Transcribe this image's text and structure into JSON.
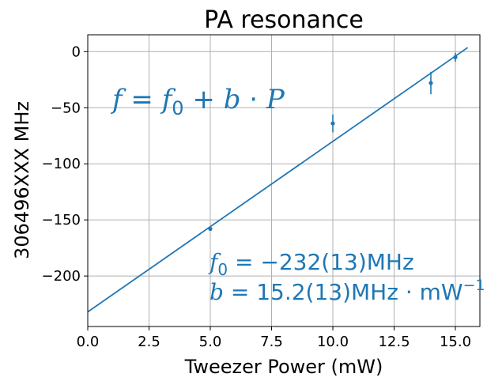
{
  "chart_data": {
    "type": "scatter",
    "title": "PA resonance",
    "xlabel": "Tweezer Power (mW)",
    "ylabel": "306496XXX MHz",
    "xlim": [
      0,
      16
    ],
    "ylim": [
      -245,
      15
    ],
    "xticks": [
      0,
      2.5,
      5,
      7.5,
      10,
      12.5,
      15
    ],
    "xtick_labels": [
      "0.0",
      "2.5",
      "5.0",
      "7.5",
      "10.0",
      "12.5",
      "15.0"
    ],
    "yticks": [
      -200,
      -150,
      -100,
      -50,
      0
    ],
    "ytick_labels": [
      "−200",
      "−150",
      "−100",
      "−50",
      "0"
    ],
    "grid": true,
    "color": "#1f77b4",
    "series": [
      {
        "kind": "errorbar",
        "x": [
          5,
          10,
          14,
          15
        ],
        "y": [
          -158,
          -64,
          -28,
          -5
        ],
        "yerr": [
          1.5,
          8,
          10,
          4
        ]
      },
      {
        "kind": "fit_line",
        "intercept": -232,
        "slope": 15.2,
        "x_range": [
          0,
          15.5
        ]
      }
    ],
    "annotations": {
      "formula": {
        "lhs": "f",
        "eq": " = ",
        "f0": "f",
        "f0_sub": "0",
        "plus": " + ",
        "b": "b",
        "dot": " · ",
        "p": "P"
      },
      "fit_f0": {
        "sym": "f",
        "sub": "0",
        "text": " = −232(13)MHz"
      },
      "fit_b": {
        "sym": "b",
        "text": " = 15.2(13)MHz · mW",
        "sup": "−1"
      }
    }
  }
}
